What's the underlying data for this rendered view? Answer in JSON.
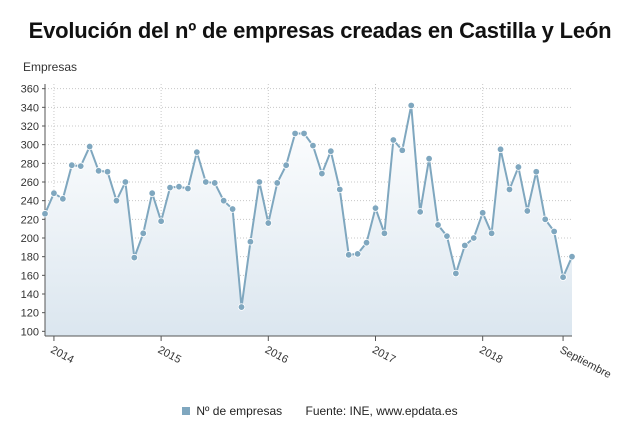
{
  "chart_data": {
    "type": "area",
    "title": "Evolución del nº de empresas creadas en Castilla y León",
    "ylabel": "Empresas",
    "ylim": [
      95,
      365
    ],
    "yticks": [
      100,
      120,
      140,
      160,
      180,
      200,
      220,
      240,
      260,
      280,
      300,
      320,
      340,
      360
    ],
    "grid": true,
    "x_tick_labels": [
      {
        "label": "2014",
        "index": 1
      },
      {
        "label": "2015",
        "index": 13
      },
      {
        "label": "2016",
        "index": 25
      },
      {
        "label": "2017",
        "index": 37
      },
      {
        "label": "2018",
        "index": 49
      },
      {
        "label": "Septiembre",
        "index": 58
      }
    ],
    "series": [
      {
        "name": "Nº de empresas",
        "color": "#7fa7bf",
        "values": [
          226,
          248,
          242,
          278,
          277,
          298,
          272,
          271,
          240,
          260,
          179,
          205,
          248,
          218,
          254,
          255,
          253,
          292,
          260,
          259,
          240,
          231,
          126,
          196,
          260,
          216,
          259,
          278,
          312,
          312,
          299,
          269,
          293,
          252,
          182,
          183,
          195,
          232,
          205,
          305,
          294,
          342,
          228,
          285,
          214,
          202,
          162,
          192,
          200,
          227,
          205,
          295,
          252,
          276,
          229,
          271,
          220,
          207,
          158,
          180
        ]
      }
    ],
    "legend_position": "bottom"
  },
  "footer": {
    "legend_label": "Nº de empresas",
    "source": "Fuente: INE, www.epdata.es"
  }
}
